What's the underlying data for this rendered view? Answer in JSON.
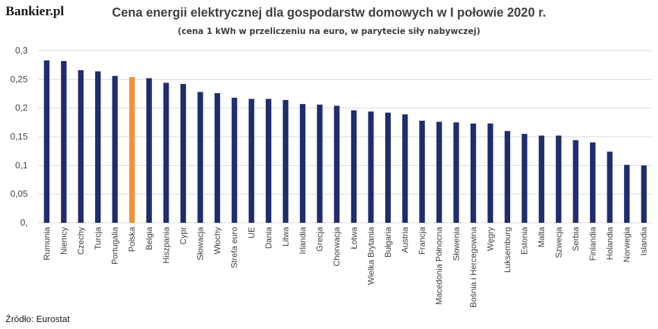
{
  "logo": "Bankier.pl",
  "source": "Źródło: Eurostat",
  "colors": {
    "bar": "#1f2d6e",
    "highlight": "#f39237",
    "grid": "#d9d9d9"
  },
  "chart_data": {
    "type": "bar",
    "title": "Cena energii elektrycznej dla gospodarstw domowych w I połowie 2020 r.",
    "subtitle": "(cena 1 kWh w przeliczeniu na euro, w parytecie siły nabywczej)",
    "xlabel": "",
    "ylabel": "",
    "ylim": [
      0,
      0.3
    ],
    "y_ticks": [
      "0,",
      "0,05",
      "0,1",
      "0,15",
      "0,2",
      "0,25",
      "0,3"
    ],
    "y_tick_values": [
      0,
      0.05,
      0.1,
      0.15,
      0.2,
      0.25,
      0.3
    ],
    "grid": true,
    "highlight_category": "Polska",
    "categories": [
      "Rumunia",
      "Niemcy",
      "Czechy",
      "Turcja",
      "Portugalia",
      "Polska",
      "Belgia",
      "Hiszpania",
      "Cypr",
      "Słowacja",
      "Włochy",
      "Strefa euro",
      "UE",
      "Dania",
      "Litwa",
      "Irlandia",
      "Grecja",
      "Chorwacja",
      "Łotwa",
      "Wielka Brytania",
      "Bułgaria",
      "Austria",
      "Francja",
      "Macedonia Północna",
      "Słowenia",
      "Bośnia i Hercegowina",
      "Węgry",
      "Luksemburg",
      "Estonia",
      "Malta",
      "Szwecja",
      "Serbia",
      "Finlandia",
      "Holandia",
      "Norwegia",
      "Islandia"
    ],
    "values": [
      0.283,
      0.282,
      0.266,
      0.264,
      0.256,
      0.254,
      0.252,
      0.244,
      0.242,
      0.228,
      0.226,
      0.218,
      0.216,
      0.216,
      0.214,
      0.207,
      0.206,
      0.204,
      0.196,
      0.194,
      0.192,
      0.189,
      0.178,
      0.176,
      0.175,
      0.173,
      0.173,
      0.16,
      0.155,
      0.152,
      0.152,
      0.144,
      0.14,
      0.124,
      0.101,
      0.1
    ]
  }
}
